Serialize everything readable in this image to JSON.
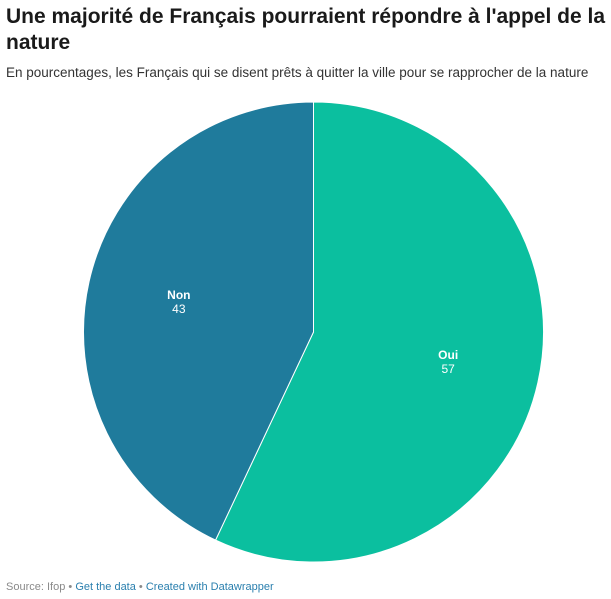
{
  "header": {
    "title": "Une majorité de Français pourraient répondre à l'appel de la nature",
    "subtitle": "En pourcentages, les Français qui se disent prêts à quitter la ville pour se rapprocher de la nature"
  },
  "footer": {
    "source": "Source: Ifop",
    "separator": "•",
    "get_data": "Get the data",
    "created_with": "Created with Datawrapper"
  },
  "chart_data": {
    "type": "pie",
    "title": "Une majorité de Français pourraient répondre à l'appel de la nature",
    "subtitle": "En pourcentages, les Français qui se disent prêts à quitter la ville pour se rapprocher de la nature",
    "slices": [
      {
        "label": "Oui",
        "value": 57,
        "color": "#0bbf9f"
      },
      {
        "label": "Non",
        "value": 43,
        "color": "#1f7b9c"
      }
    ],
    "start": "top, clockwise",
    "legend": "labels inside slices"
  }
}
